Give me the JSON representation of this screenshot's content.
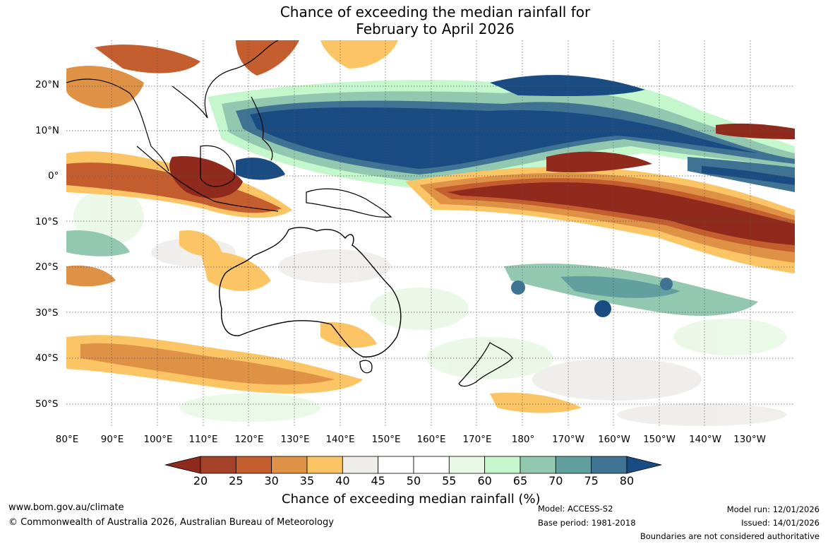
{
  "title": {
    "line1": "Chance of exceeding the median rainfall for",
    "line2": "February to April 2026"
  },
  "lon_labels": [
    "80°E",
    "90°E",
    "100°E",
    "110°E",
    "120°E",
    "130°E",
    "140°E",
    "150°E",
    "160°E",
    "170°E",
    "180°",
    "170°W",
    "160°W",
    "150°W",
    "140°W",
    "130°W"
  ],
  "lat_labels": [
    "20°N",
    "10°N",
    "0°",
    "10°S",
    "20°S",
    "30°S",
    "40°S",
    "50°S"
  ],
  "colorbar": {
    "ticks": [
      "20",
      "25",
      "30",
      "35",
      "40",
      "45",
      "50",
      "55",
      "60",
      "65",
      "70",
      "75",
      "80"
    ],
    "colors": [
      "#a5432a",
      "#c45e2f",
      "#df9146",
      "#fbc565",
      "#efedea",
      "#ffffff",
      "#ffffff",
      "#e9f8e6",
      "#c5f7cc",
      "#93c8b0",
      "#62a0a0",
      "#3f7394"
    ],
    "under_color": "#8f2a1c",
    "over_color": "#1a4c84",
    "label": "Chance of exceeding median rainfall (%)"
  },
  "footer": {
    "website": "www.bom.gov.au/climate",
    "copyright": "© Commonwealth of Australia 2026, Australian Bureau of Meteorology",
    "model": "Model: ACCESS-S2",
    "base_period": "Base period: 1981-2018",
    "model_run": "Model run: 12/01/2026",
    "issued": "Issued: 14/01/2026",
    "disclaimer": "Boundaries are not considered authoritative"
  }
}
